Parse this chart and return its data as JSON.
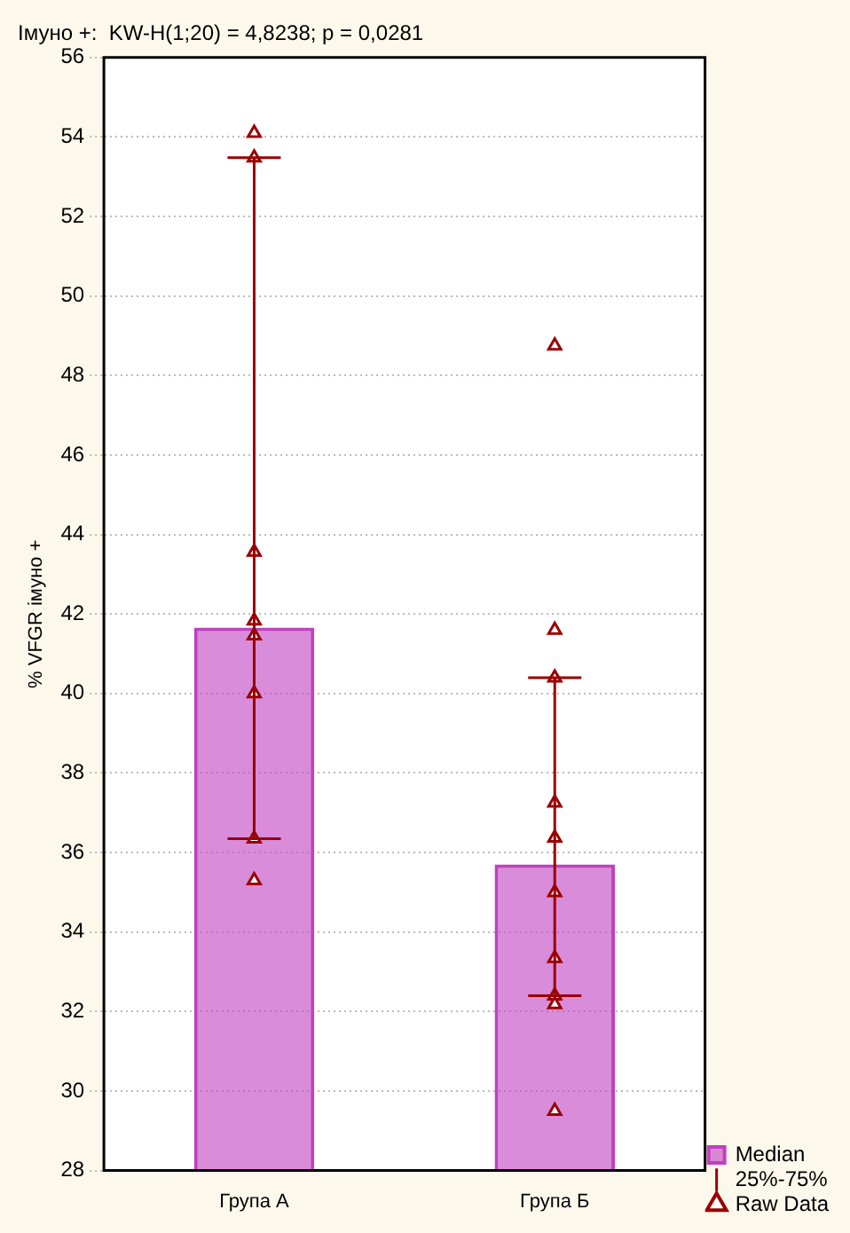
{
  "chart_data": {
    "type": "bar",
    "title": "Імуно +:  KW-H(1;20) = 4,8238; p = 0,0281",
    "ylabel": "% VFGR імуно +",
    "categories": [
      "Група А",
      "Група Б"
    ],
    "series": [
      {
        "name": "Median",
        "color": "#c040c0",
        "values": [
          41.66,
          35.7
        ],
        "errors": [
          [
            36.35,
            53.48
          ],
          [
            32.4,
            40.4
          ]
        ]
      },
      {
        "name": "Raw Data",
        "type": "scatter",
        "color": "#990000",
        "x": [
          "Група А",
          "Група А",
          "Група А",
          "Група А",
          "Група А",
          "Група А",
          "Група А",
          "Група А",
          "Група Б",
          "Група Б",
          "Група Б",
          "Група Б",
          "Група Б",
          "Група Б",
          "Група Б",
          "Група Б",
          "Група Б",
          "Група Б"
        ],
        "values": [
          54.1,
          53.48,
          43.56,
          41.83,
          41.46,
          40.0,
          36.35,
          35.3,
          48.75,
          41.6,
          40.4,
          37.25,
          36.37,
          35.0,
          33.34,
          32.4,
          32.18,
          29.5
        ]
      }
    ],
    "annotations": [
      "25%-75%"
    ],
    "ylim": [
      28,
      56
    ],
    "yticks": [
      28,
      30,
      32,
      34,
      36,
      38,
      40,
      42,
      44,
      46,
      48,
      50,
      52,
      54,
      56
    ],
    "grid": "y",
    "legend": "bottom right",
    "marker": "triangle"
  }
}
